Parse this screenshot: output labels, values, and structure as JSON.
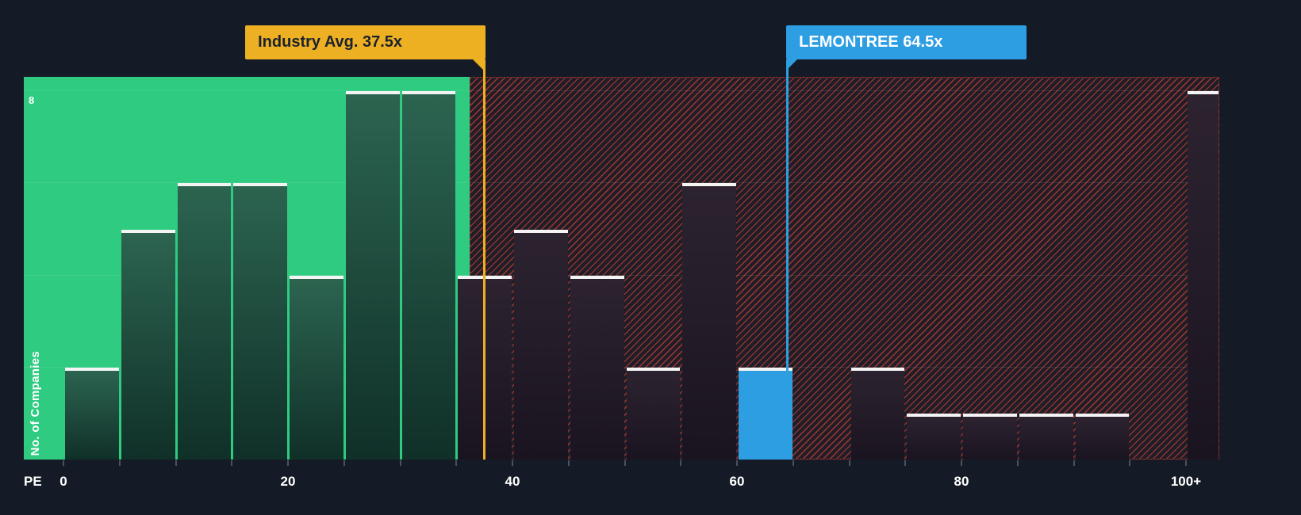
{
  "colors": {
    "background": "#151b26",
    "zone_green": "#2ecb81",
    "hatch_stripe": "rgba(231,70,53,0.55)",
    "hatch_border": "rgba(231,70,53,0.35)",
    "hatch_bg_tint": "rgba(231,70,53,0.05)",
    "bar_green_top": "#2c6450",
    "bar_green_bottom": "#103028",
    "bar_dark_top": "#2d2330",
    "bar_dark_bottom": "#1a1420",
    "bar_cap": "#f4f4f4",
    "company_blue": "#2e9ee3",
    "industry_gold": "#edb022",
    "axis_text": "#ffffff",
    "tick_mark": "#4a5260",
    "gridline": "rgba(255,255,255,0.09)"
  },
  "chart_data": {
    "type": "bar",
    "xlabel": "PE",
    "ylabel": "No. of Companies",
    "y_tick_label": "8",
    "ylim": [
      0,
      8.3
    ],
    "x_tick_labels": [
      "0",
      "20",
      "40",
      "60",
      "80",
      "100+"
    ],
    "x_tick_values": [
      0,
      20,
      40,
      60,
      80,
      100
    ],
    "bin_width": 5,
    "bins": [
      {
        "start": 0,
        "end": 5,
        "count": 2,
        "zone": "below-average"
      },
      {
        "start": 5,
        "end": 10,
        "count": 5,
        "zone": "below-average"
      },
      {
        "start": 10,
        "end": 15,
        "count": 6,
        "zone": "below-average"
      },
      {
        "start": 15,
        "end": 20,
        "count": 6,
        "zone": "below-average"
      },
      {
        "start": 20,
        "end": 25,
        "count": 4,
        "zone": "below-average"
      },
      {
        "start": 25,
        "end": 30,
        "count": 8,
        "zone": "below-average"
      },
      {
        "start": 30,
        "end": 35,
        "count": 8,
        "zone": "below-average"
      },
      {
        "start": 35,
        "end": 40,
        "count": 4,
        "zone": "above-average"
      },
      {
        "start": 40,
        "end": 45,
        "count": 5,
        "zone": "above-average"
      },
      {
        "start": 45,
        "end": 50,
        "count": 4,
        "zone": "above-average"
      },
      {
        "start": 50,
        "end": 55,
        "count": 2,
        "zone": "above-average"
      },
      {
        "start": 55,
        "end": 60,
        "count": 6,
        "zone": "above-average"
      },
      {
        "start": 60,
        "end": 65,
        "count": 2,
        "zone": "above-average",
        "highlight": "company"
      },
      {
        "start": 65,
        "end": 70,
        "count": 0,
        "zone": "above-average"
      },
      {
        "start": 70,
        "end": 75,
        "count": 2,
        "zone": "above-average"
      },
      {
        "start": 75,
        "end": 80,
        "count": 1,
        "zone": "above-average"
      },
      {
        "start": 80,
        "end": 85,
        "count": 1,
        "zone": "above-average"
      },
      {
        "start": 85,
        "end": 90,
        "count": 1,
        "zone": "above-average"
      },
      {
        "start": 90,
        "end": 95,
        "count": 1,
        "zone": "above-average"
      },
      {
        "start": 95,
        "end": 100,
        "count": 0,
        "zone": "above-average"
      },
      {
        "start": 100,
        "end": null,
        "count": 8,
        "zone": "above-average",
        "open_ended": true
      }
    ],
    "zone_boundary": 36.3,
    "zones": [
      {
        "id": "below-average",
        "style": "solid-green"
      },
      {
        "id": "above-average",
        "style": "red-hatched"
      }
    ],
    "markers": [
      {
        "id": "industry-avg",
        "label": "Industry Avg. 37.5x",
        "value": 37.5,
        "color": "#edb022",
        "text_color": "#1b222e",
        "align": "right"
      },
      {
        "id": "company",
        "label": "LEMONTREE 64.5x",
        "value": 64.5,
        "color": "#2e9ee3",
        "text_color": "#ffffff",
        "align": "left"
      }
    ]
  }
}
